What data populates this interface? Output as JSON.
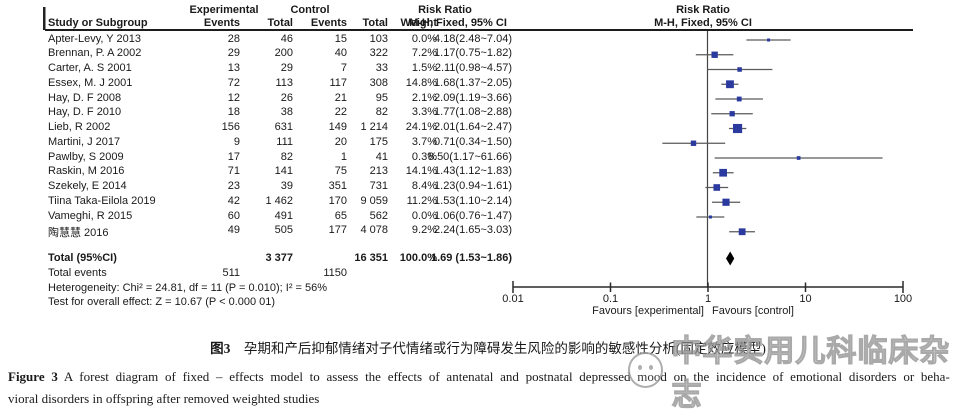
{
  "header": {
    "group_experimental": "Experimental",
    "group_control": "Control",
    "group_risk_ratio_left": "Risk Ratio",
    "group_risk_ratio_plot": "Risk Ratio",
    "col_study": "Study or Subgroup",
    "col_events_exp": "Events",
    "col_total_exp": "Total",
    "col_events_ctl": "Events",
    "col_total_ctl": "Total",
    "col_weight": "Weight",
    "col_method_left": "M-H, Fixed, 95% CI",
    "col_method_plot": "M-H, Fixed, 95% CI"
  },
  "chart_data": {
    "type": "forest",
    "x_scale": "log",
    "x_range": [
      0.01,
      100
    ],
    "x_ticks": [
      0.01,
      0.1,
      1,
      10,
      100
    ],
    "x_tick_labels": [
      "0.01",
      "0.1",
      "1",
      "10",
      "100"
    ],
    "favours_left": "Favours [experimental]",
    "favours_right": "Favours [control]",
    "studies": [
      {
        "study": "Apter-Levy, Y 2013",
        "events_exp": "28",
        "total_exp": "46",
        "events_ctl": "15",
        "total_ctl": "103",
        "weight": "0.0%",
        "rr_text": "4.18(2.48~7.04)",
        "rr": 4.18,
        "low": 2.48,
        "high": 7.04,
        "w": 0.0
      },
      {
        "study": "Brennan, P. A 2002",
        "events_exp": "29",
        "total_exp": "200",
        "events_ctl": "40",
        "total_ctl": "322",
        "weight": "7.2%",
        "rr_text": "1.17(0.75~1.82)",
        "rr": 1.17,
        "low": 0.75,
        "high": 1.82,
        "w": 7.2
      },
      {
        "study": "Carter, A. S 2001",
        "events_exp": "13",
        "total_exp": "29",
        "events_ctl": "7",
        "total_ctl": "33",
        "weight": "1.5%",
        "rr_text": "2.11(0.98~4.57)",
        "rr": 2.11,
        "low": 0.98,
        "high": 4.57,
        "w": 1.5
      },
      {
        "study": "Essex, M. J 2001",
        "events_exp": "72",
        "total_exp": "113",
        "events_ctl": "117",
        "total_ctl": "308",
        "weight": "14.8%",
        "rr_text": "1.68(1.37~2.05)",
        "rr": 1.68,
        "low": 1.37,
        "high": 2.05,
        "w": 14.8
      },
      {
        "study": "Hay, D. F 2008",
        "events_exp": "12",
        "total_exp": "26",
        "events_ctl": "21",
        "total_ctl": "95",
        "weight": "2.1%",
        "rr_text": "2.09(1.19~3.66)",
        "rr": 2.09,
        "low": 1.19,
        "high": 3.66,
        "w": 2.1
      },
      {
        "study": "Hay, D. F 2010",
        "events_exp": "18",
        "total_exp": "38",
        "events_ctl": "22",
        "total_ctl": "82",
        "weight": "3.3%",
        "rr_text": "1.77(1.08~2.88)",
        "rr": 1.77,
        "low": 1.08,
        "high": 2.88,
        "w": 3.3
      },
      {
        "study": "Lieb, R 2002",
        "events_exp": "156",
        "total_exp": "631",
        "events_ctl": "149",
        "total_ctl": "1 214",
        "weight": "24.1%",
        "rr_text": "2.01(1.64~2.47)",
        "rr": 2.01,
        "low": 1.64,
        "high": 2.47,
        "w": 24.1
      },
      {
        "study": "Martini, J 2017",
        "events_exp": "9",
        "total_exp": "111",
        "events_ctl": "20",
        "total_ctl": "175",
        "weight": "3.7%",
        "rr_text": "0.71(0.34~1.50)",
        "rr": 0.71,
        "low": 0.34,
        "high": 1.5,
        "w": 3.7
      },
      {
        "study": "Pawlby, S 2009",
        "events_exp": "17",
        "total_exp": "82",
        "events_ctl": "1",
        "total_ctl": "41",
        "weight": "0.3%",
        "rr_text": "8.50(1.17~61.66)",
        "rr": 8.5,
        "low": 1.17,
        "high": 61.66,
        "w": 0.3
      },
      {
        "study": "Raskin, M 2016",
        "events_exp": "71",
        "total_exp": "141",
        "events_ctl": "75",
        "total_ctl": "213",
        "weight": "14.1%",
        "rr_text": "1.43(1.12~1.83)",
        "rr": 1.43,
        "low": 1.12,
        "high": 1.83,
        "w": 14.1
      },
      {
        "study": "Szekely, E 2014",
        "events_exp": "23",
        "total_exp": "39",
        "events_ctl": "351",
        "total_ctl": "731",
        "weight": "8.4%",
        "rr_text": "1.23(0.94~1.61)",
        "rr": 1.23,
        "low": 0.94,
        "high": 1.61,
        "w": 8.4
      },
      {
        "study": "Tiina Taka-Eilola 2019",
        "events_exp": "42",
        "total_exp": "1 462",
        "events_ctl": "170",
        "total_ctl": "9 059",
        "weight": "11.2%",
        "rr_text": "1.53(1.10~2.14)",
        "rr": 1.53,
        "low": 1.1,
        "high": 2.14,
        "w": 11.2
      },
      {
        "study": "Vameghi, R 2015",
        "events_exp": "60",
        "total_exp": "491",
        "events_ctl": "65",
        "total_ctl": "562",
        "weight": "0.0%",
        "rr_text": "1.06(0.76~1.47)",
        "rr": 1.06,
        "low": 0.76,
        "high": 1.47,
        "w": 0.0
      },
      {
        "study": "陶慧慧 2016",
        "events_exp": "49",
        "total_exp": "505",
        "events_ctl": "177",
        "total_ctl": "4 078",
        "weight": "9.2%",
        "rr_text": "2.24(1.65~3.03)",
        "rr": 2.24,
        "low": 1.65,
        "high": 3.03,
        "w": 9.2
      }
    ],
    "total": {
      "label": "Total (95%CI)",
      "total_exp": "3 377",
      "total_ctl": "16 351",
      "weight": "100.0%",
      "rr_text": "1.69 (1.53~1.86)",
      "rr": 1.69,
      "low": 1.53,
      "high": 1.86
    },
    "total_events": {
      "label": "Total events",
      "exp": "511",
      "ctl": "1150"
    },
    "heterogeneity": "Heterogeneity: Chi² = 24.81, df = 11 (P = 0.010); I² = 56%",
    "overall_effect": "Test for overall effect: Z = 10.67 (P < 0.000 01)",
    "colors": {
      "square": "#2b3a9e",
      "ci_line": "#5a5a5a",
      "diamond": "#000000",
      "axis": "#2a2a2a"
    }
  },
  "caption": {
    "zh_prefix": "图3",
    "zh_rest": "　孕期和产后抑郁情绪对子代情绪或行为障碍发生风险的影响的敏感性分析(固定效应模型)",
    "en_prefix": "Figure 3",
    "en_line1_rest": "  A forest diagram of fixed – effects model to assess the effects of antenatal and postnatal depressed mood on the incidence of emotional disorders or beha-",
    "en_line2": "vioral disorders in offspring after removed weighted studies"
  },
  "watermark": {
    "text": "中华实用儿科临床杂志"
  }
}
